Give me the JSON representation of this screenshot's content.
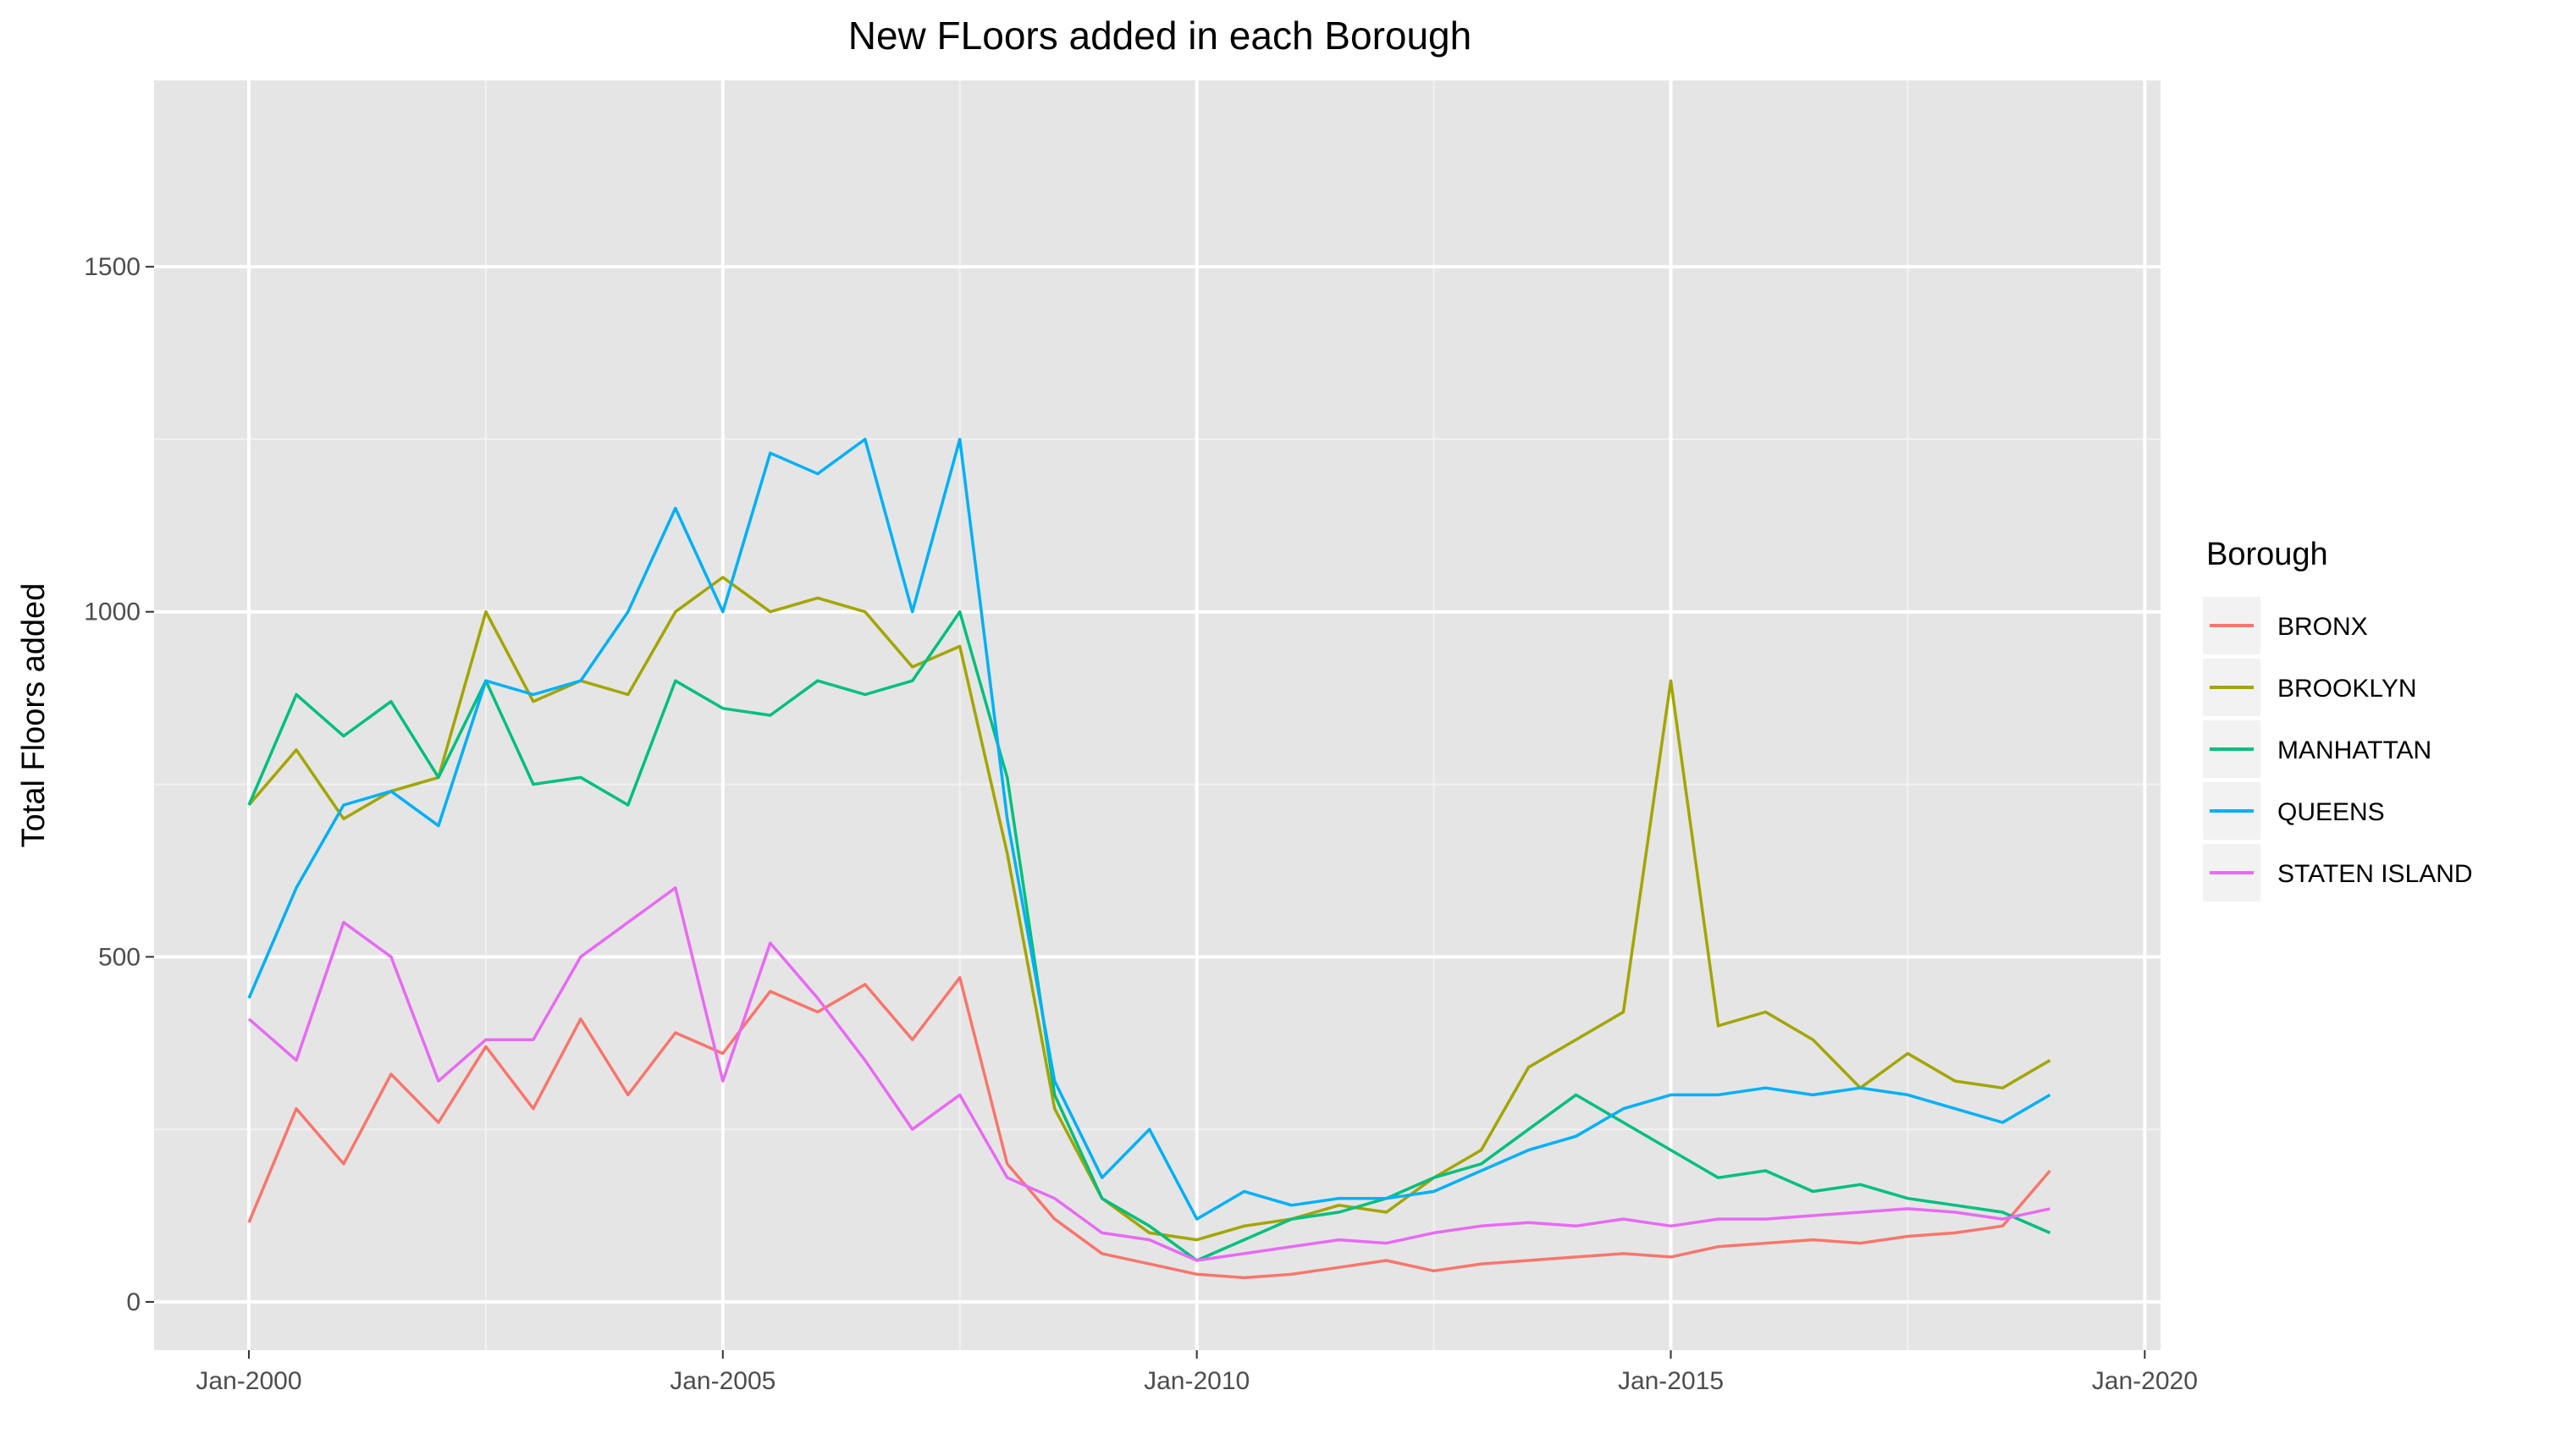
{
  "chart_data": {
    "type": "line",
    "title": "New FLoors added in each Borough",
    "xlabel": "",
    "ylabel": "Total Floors added",
    "x_ticks": [
      "Jan-2000",
      "Jan-2005",
      "Jan-2010",
      "Jan-2015",
      "Jan-2020"
    ],
    "y_ticks": [
      "0",
      "500",
      "1000",
      "1500"
    ],
    "xlim": [
      "1999-01",
      "2020-03"
    ],
    "ylim": [
      -70,
      1770
    ],
    "grid": true,
    "background": "#e5e5e5",
    "legend": {
      "title": "Borough",
      "position": "right"
    },
    "x_labels": [
      "2000-01",
      "2000-07",
      "2001-01",
      "2001-07",
      "2002-01",
      "2002-07",
      "2003-01",
      "2003-07",
      "2004-01",
      "2004-07",
      "2005-01",
      "2005-07",
      "2006-01",
      "2006-07",
      "2007-01",
      "2007-07",
      "2008-01",
      "2008-07",
      "2009-01",
      "2009-07",
      "2010-01",
      "2010-07",
      "2011-01",
      "2011-07",
      "2012-01",
      "2012-07",
      "2013-01",
      "2013-07",
      "2014-01",
      "2014-07",
      "2015-01",
      "2015-07",
      "2016-01",
      "2016-07",
      "2017-01",
      "2017-07",
      "2018-01",
      "2018-07",
      "2019-01"
    ],
    "series": [
      {
        "name": "BRONX",
        "color": "#F8766D",
        "values": [
          115,
          280,
          200,
          330,
          260,
          370,
          280,
          410,
          300,
          390,
          360,
          450,
          420,
          460,
          380,
          470,
          200,
          120,
          70,
          55,
          40,
          35,
          40,
          50,
          60,
          45,
          55,
          60,
          65,
          70,
          65,
          80,
          85,
          90,
          85,
          95,
          100,
          110,
          190
        ]
      },
      {
        "name": "BROOKLYN",
        "color": "#A3A500",
        "values": [
          720,
          800,
          700,
          740,
          760,
          1000,
          870,
          900,
          880,
          1000,
          1050,
          1000,
          1020,
          1000,
          920,
          950,
          650,
          280,
          150,
          100,
          90,
          110,
          120,
          140,
          130,
          180,
          220,
          340,
          380,
          420,
          900,
          400,
          420,
          380,
          310,
          360,
          320,
          310,
          350
        ]
      },
      {
        "name": "MANHATTAN",
        "color": "#00BF7D",
        "values": [
          720,
          880,
          820,
          870,
          760,
          900,
          750,
          760,
          720,
          900,
          860,
          850,
          900,
          880,
          900,
          1000,
          760,
          300,
          150,
          110,
          60,
          90,
          120,
          130,
          150,
          180,
          200,
          250,
          300,
          260,
          220,
          180,
          190,
          160,
          170,
          150,
          140,
          130,
          100
        ]
      },
      {
        "name": "QUEENS",
        "color": "#00B0F6",
        "values": [
          440,
          600,
          720,
          740,
          690,
          900,
          880,
          900,
          1000,
          1150,
          1000,
          1230,
          1200,
          1250,
          1000,
          1250,
          700,
          320,
          180,
          250,
          120,
          160,
          140,
          150,
          150,
          160,
          190,
          220,
          240,
          280,
          300,
          300,
          310,
          300,
          310,
          300,
          280,
          260,
          300
        ]
      },
      {
        "name": "STATEN ISLAND",
        "color": "#E76BF3",
        "values": [
          410,
          350,
          550,
          500,
          320,
          380,
          380,
          500,
          550,
          600,
          320,
          520,
          440,
          350,
          250,
          300,
          180,
          150,
          100,
          90,
          60,
          70,
          80,
          90,
          85,
          100,
          110,
          115,
          110,
          120,
          110,
          120,
          120,
          125,
          130,
          135,
          130,
          120,
          135
        ]
      }
    ]
  }
}
